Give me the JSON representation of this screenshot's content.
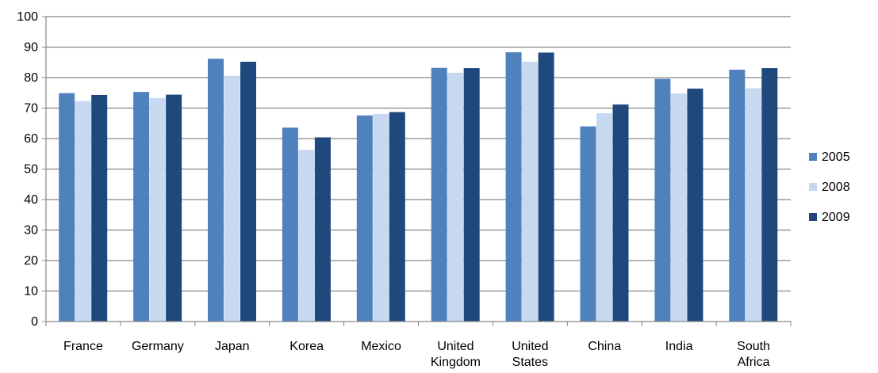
{
  "chart_data": {
    "type": "bar",
    "title": "",
    "xlabel": "",
    "ylabel": "",
    "ylim": [
      0,
      100
    ],
    "yticks": [
      0,
      10,
      20,
      30,
      40,
      50,
      60,
      70,
      80,
      90,
      100
    ],
    "grid": true,
    "legend_position": "right",
    "categories": [
      [
        "France"
      ],
      [
        "Germany"
      ],
      [
        "Japan"
      ],
      [
        "Korea"
      ],
      [
        "Mexico"
      ],
      [
        "United",
        "Kingdom"
      ],
      [
        "United",
        "States"
      ],
      [
        "China"
      ],
      [
        "India"
      ],
      [
        "South",
        "Africa"
      ]
    ],
    "series": [
      {
        "name": "2005",
        "color": "#4f81bd",
        "values": [
          74.9,
          75.3,
          86.2,
          63.6,
          67.6,
          83.2,
          88.3,
          64.0,
          79.6,
          82.6
        ]
      },
      {
        "name": "2008",
        "color": "#c6d9f1",
        "values": [
          72.3,
          73.3,
          80.6,
          56.3,
          68.1,
          81.6,
          85.2,
          68.3,
          74.8,
          76.5
        ]
      },
      {
        "name": "2009",
        "color": "#1f497d",
        "values": [
          74.3,
          74.4,
          85.2,
          60.4,
          68.7,
          83.1,
          88.2,
          71.2,
          76.4,
          83.1
        ]
      }
    ]
  }
}
